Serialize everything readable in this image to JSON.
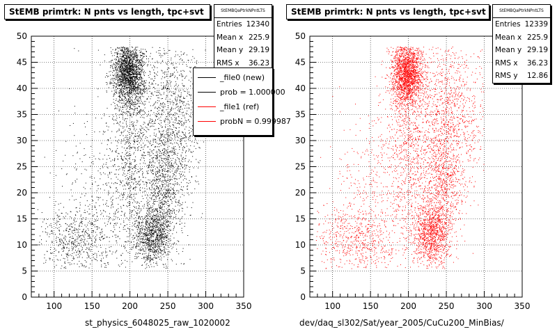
{
  "footer": "",
  "chart_data": [
    {
      "type": "scatter",
      "title": "StEMB primtrk: N pnts vs length, tpc+svt",
      "xlabel": "st_physics_6048025_raw_1020002",
      "ylabel": "",
      "xlim": [
        70,
        350
      ],
      "ylim": [
        0,
        50
      ],
      "xticks": [
        "100",
        "150",
        "200",
        "250",
        "300",
        "350"
      ],
      "yticks": [
        "0",
        "5",
        "10",
        "15",
        "20",
        "25",
        "30",
        "35",
        "40",
        "45",
        "50"
      ],
      "grid": true,
      "marker_color": "#000000",
      "stats": {
        "name": "StEMBQaPtrkNPntLTS",
        "rows": [
          {
            "label": "Entries",
            "value": "12340"
          },
          {
            "label": "Mean x",
            "value": "225.9"
          },
          {
            "label": "Mean y",
            "value": "29.19"
          },
          {
            "label": "RMS x",
            "value": "36.23"
          }
        ]
      },
      "legend": {
        "placement": "top-right",
        "entries": [
          {
            "label": "_file0 (new)",
            "color": "#000000"
          },
          {
            "label": "prob = 1.000000",
            "color": "#000000"
          },
          {
            "label": "_file1 (ref)",
            "color": "#ff0000"
          },
          {
            "label": "probN = 0.999987",
            "color": "#ff0000"
          }
        ]
      },
      "density_clusters": [
        {
          "x": 198,
          "y": 43,
          "sx": 10,
          "sy": 3,
          "weight": 0.28
        },
        {
          "x": 200,
          "y": 30,
          "sx": 14,
          "sy": 10,
          "weight": 0.12
        },
        {
          "x": 230,
          "y": 12,
          "sx": 12,
          "sy": 3,
          "weight": 0.16
        },
        {
          "x": 245,
          "y": 22,
          "sx": 14,
          "sy": 6,
          "weight": 0.12
        },
        {
          "x": 255,
          "y": 35,
          "sx": 22,
          "sy": 8,
          "weight": 0.16
        },
        {
          "x": 125,
          "y": 11,
          "sx": 28,
          "sy": 3,
          "weight": 0.08
        },
        {
          "x": 160,
          "y": 18,
          "sx": 30,
          "sy": 10,
          "weight": 0.08
        }
      ]
    },
    {
      "type": "scatter",
      "title": "StEMB primtrk: N pnts vs length, tpc+svt",
      "xlabel": "dev/daq_sl302/Sat/year_2005/CuCu200_MinBias/",
      "ylabel": "",
      "xlim": [
        70,
        350
      ],
      "ylim": [
        0,
        50
      ],
      "xticks": [
        "100",
        "150",
        "200",
        "250",
        "300",
        "350"
      ],
      "yticks": [
        "0",
        "5",
        "10",
        "15",
        "20",
        "25",
        "30",
        "35",
        "40",
        "45",
        "50"
      ],
      "grid": true,
      "marker_color": "#ff0000",
      "stats": {
        "name": "StEMBQaPtrkNPntLTS",
        "rows": [
          {
            "label": "Entries",
            "value": "12339"
          },
          {
            "label": "Mean x",
            "value": "225.9"
          },
          {
            "label": "Mean y",
            "value": "29.19"
          },
          {
            "label": "RMS x",
            "value": "36.23"
          },
          {
            "label": "RMS y",
            "value": "12.86"
          }
        ]
      },
      "density_clusters": [
        {
          "x": 198,
          "y": 43,
          "sx": 10,
          "sy": 3,
          "weight": 0.28
        },
        {
          "x": 200,
          "y": 30,
          "sx": 14,
          "sy": 10,
          "weight": 0.12
        },
        {
          "x": 230,
          "y": 12,
          "sx": 12,
          "sy": 3,
          "weight": 0.16
        },
        {
          "x": 245,
          "y": 22,
          "sx": 14,
          "sy": 6,
          "weight": 0.12
        },
        {
          "x": 255,
          "y": 35,
          "sx": 22,
          "sy": 8,
          "weight": 0.16
        },
        {
          "x": 125,
          "y": 11,
          "sx": 28,
          "sy": 3,
          "weight": 0.08
        },
        {
          "x": 160,
          "y": 18,
          "sx": 30,
          "sy": 10,
          "weight": 0.08
        }
      ]
    }
  ]
}
